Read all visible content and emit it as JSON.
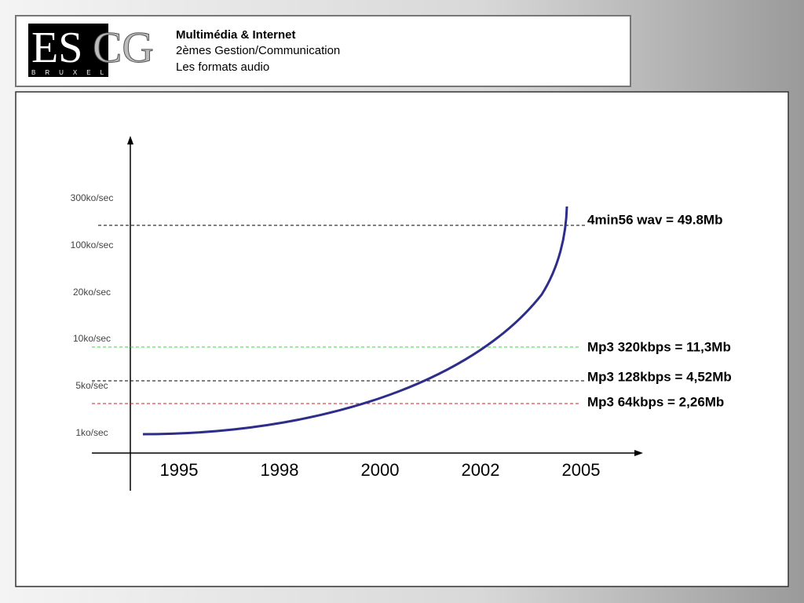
{
  "logo": {
    "left": "ES",
    "right": "CG",
    "city": "BRUXELLES"
  },
  "header": {
    "title": "Multimédia & Internet",
    "course": "2èmes Gestion/Communication",
    "topic": "Les formats audio"
  },
  "diagram": {
    "y_labels": [
      "300ko/sec",
      "100ko/sec",
      "20ko/sec",
      "10ko/sec",
      "5ko/sec",
      "1ko/sec"
    ],
    "x_labels": [
      "1995",
      "1998",
      "2000",
      "2002",
      "2005"
    ],
    "references": [
      "4min56 wav = 49.8Mb",
      "Mp3 320kbps = 11,3Mb",
      "Mp3 128kbps = 4,52Mb",
      "Mp3 64kbps = 2,26Mb"
    ]
  }
}
